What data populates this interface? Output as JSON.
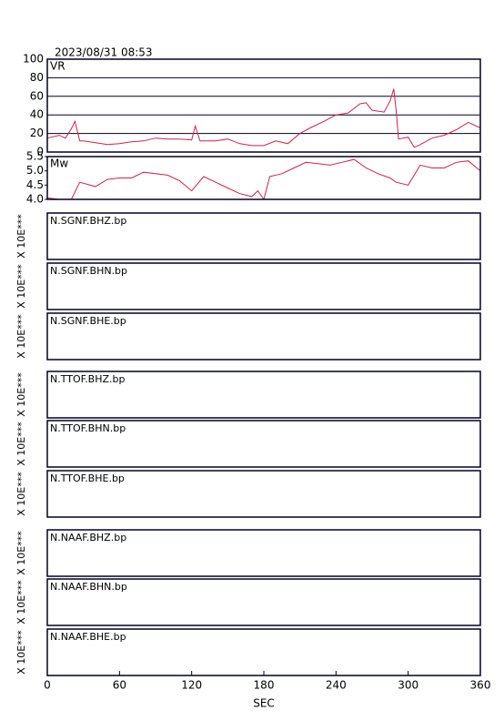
{
  "title": "2023/08/31 08:53",
  "chart_data": [
    {
      "type": "line",
      "label": "VR",
      "x": [
        0,
        10,
        15,
        20,
        23,
        27,
        30,
        40,
        50,
        60,
        70,
        80,
        90,
        100,
        110,
        120,
        123,
        127,
        140,
        150,
        160,
        170,
        180,
        190,
        200,
        210,
        220,
        230,
        240,
        250,
        260,
        265,
        270,
        280,
        285,
        288,
        290,
        292,
        300,
        305,
        310,
        320,
        330,
        340,
        350,
        360
      ],
      "series": [
        {
          "color": "#d0204a",
          "values": [
            15,
            18,
            15,
            25,
            33,
            12,
            12,
            10,
            8,
            9,
            11,
            12,
            15,
            14,
            14,
            13,
            28,
            12,
            12,
            14,
            9,
            7,
            7,
            12,
            9,
            20,
            27,
            33,
            40,
            42,
            52,
            53,
            45,
            43,
            55,
            68,
            45,
            14,
            16,
            5,
            8,
            15,
            18,
            24,
            32,
            26
          ]
        }
      ],
      "ylim": [
        0,
        100
      ],
      "yticks": [
        0,
        20,
        40,
        60,
        80,
        100
      ],
      "grid": true
    },
    {
      "type": "line",
      "label": "Mw",
      "x": [
        0,
        10,
        20,
        27,
        40,
        50,
        60,
        70,
        80,
        90,
        100,
        110,
        120,
        130,
        140,
        150,
        160,
        170,
        175,
        180,
        185,
        195,
        205,
        215,
        225,
        235,
        245,
        255,
        265,
        275,
        285,
        290,
        300,
        310,
        320,
        330,
        340,
        350,
        360
      ],
      "series": [
        {
          "color": "#d0204a",
          "values": [
            4.05,
            4.0,
            4.0,
            4.6,
            4.45,
            4.7,
            4.75,
            4.75,
            4.95,
            4.9,
            4.85,
            4.65,
            4.3,
            4.8,
            4.6,
            4.4,
            4.2,
            4.1,
            4.3,
            4.0,
            4.8,
            4.9,
            5.1,
            5.3,
            5.25,
            5.2,
            5.3,
            5.4,
            5.1,
            4.9,
            4.75,
            4.6,
            4.5,
            5.2,
            5.1,
            5.1,
            5.3,
            5.35,
            5.0
          ]
        }
      ],
      "ylim": [
        4.0,
        5.5
      ],
      "yticks": [
        {
          "value": 4,
          "label": "4.0"
        },
        4.5,
        {
          "value": 5,
          "label": "5.0"
        },
        5.5
      ],
      "grid": false
    }
  ],
  "traces": [
    {
      "name": "N.SGNF.BHZ.bp",
      "scale": "X 10E***"
    },
    {
      "name": "N.SGNF.BHN.bp",
      "scale": "X 10E***"
    },
    {
      "name": "N.SGNF.BHE.bp",
      "scale": "X 10E***"
    },
    {
      "name": "N.TTOF.BHZ.bp",
      "scale": "X 10E***"
    },
    {
      "name": "N.TTOF.BHN.bp",
      "scale": "X 10E***"
    },
    {
      "name": "N.TTOF.BHE.bp",
      "scale": "X 10E***"
    },
    {
      "name": "N.NAAF.BHZ.bp",
      "scale": "X 10E***"
    },
    {
      "name": "N.NAAF.BHN.bp",
      "scale": "X 10E***"
    },
    {
      "name": "N.NAAF.BHE.bp",
      "scale": "X 10E***"
    }
  ],
  "x_axis": {
    "xlabel": "SEC",
    "xlim": [
      0,
      360
    ],
    "xticks": [
      0,
      60,
      120,
      180,
      240,
      300,
      360
    ]
  }
}
